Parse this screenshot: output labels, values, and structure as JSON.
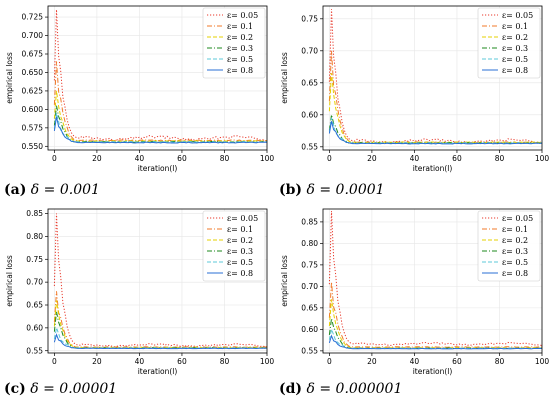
{
  "chart_data": [
    {
      "type": "line",
      "caption_letter": "(a)",
      "caption_text": "δ = 0.001",
      "xlabel": "iteration(l)",
      "ylabel": "empirical loss",
      "xlim": [
        -3,
        100
      ],
      "ylim": [
        0.545,
        0.74
      ],
      "xticks": [
        0,
        20,
        40,
        60,
        80,
        100
      ],
      "yticks": [
        0.55,
        0.575,
        0.6,
        0.625,
        0.65,
        0.675,
        0.7,
        0.725
      ],
      "ytick_labels": [
        "0.550",
        "0.575",
        "0.600",
        "0.625",
        "0.650",
        "0.675",
        "0.700",
        "0.725"
      ],
      "grid": true,
      "legend_position": "top-right",
      "series": [
        {
          "name": "ε= 0.05",
          "color": "#e8392b",
          "dash": "1.2,1.8",
          "peak": 0.735,
          "final": 0.561
        },
        {
          "name": "ε= 0.1",
          "color": "#f07a2a",
          "dash": "5,2,1,2",
          "peak": 0.665,
          "final": 0.558
        },
        {
          "name": "ε= 0.2",
          "color": "#e6d000",
          "dash": "4,2",
          "peak": 0.625,
          "final": 0.557
        },
        {
          "name": "ε= 0.3",
          "color": "#1e8a1e",
          "dash": "5,2,1,2",
          "peak": 0.605,
          "final": 0.556
        },
        {
          "name": "ε= 0.5",
          "color": "#5cc8d8",
          "dash": "4,2",
          "peak": 0.595,
          "final": 0.556
        },
        {
          "name": "ε= 0.8",
          "color": "#2a6fd6",
          "dash": "",
          "peak": 0.59,
          "final": 0.555
        }
      ]
    },
    {
      "type": "line",
      "caption_letter": "(b)",
      "caption_text": "δ = 0.0001",
      "xlabel": "iteration(l)",
      "ylabel": "empirical loss",
      "xlim": [
        -3,
        100
      ],
      "ylim": [
        0.545,
        0.77
      ],
      "xticks": [
        0,
        20,
        40,
        60,
        80,
        100
      ],
      "yticks": [
        0.55,
        0.6,
        0.65,
        0.7,
        0.75
      ],
      "ytick_labels": [
        "0.55",
        "0.60",
        "0.65",
        "0.70",
        "0.75"
      ],
      "grid": true,
      "legend_position": "top-right",
      "series": [
        {
          "name": "ε= 0.05",
          "color": "#e8392b",
          "dash": "1.2,1.8",
          "peak": 0.765,
          "final": 0.559
        },
        {
          "name": "ε= 0.1",
          "color": "#f07a2a",
          "dash": "5,2,1,2",
          "peak": 0.7,
          "final": 0.557
        },
        {
          "name": "ε= 0.2",
          "color": "#e6d000",
          "dash": "4,2",
          "peak": 0.665,
          "final": 0.557
        },
        {
          "name": "ε= 0.3",
          "color": "#1e8a1e",
          "dash": "5,2,1,2",
          "peak": 0.6,
          "final": 0.556
        },
        {
          "name": "ε= 0.5",
          "color": "#5cc8d8",
          "dash": "4,2",
          "peak": 0.595,
          "final": 0.556
        },
        {
          "name": "ε= 0.8",
          "color": "#2a6fd6",
          "dash": "",
          "peak": 0.59,
          "final": 0.555
        }
      ]
    },
    {
      "type": "line",
      "caption_letter": "(c)",
      "caption_text": "δ = 0.00001",
      "xlabel": "iteration(l)",
      "ylabel": "empirical loss",
      "xlim": [
        -3,
        100
      ],
      "ylim": [
        0.545,
        0.86
      ],
      "xticks": [
        0,
        20,
        40,
        60,
        80,
        100
      ],
      "yticks": [
        0.55,
        0.6,
        0.65,
        0.7,
        0.75,
        0.8,
        0.85
      ],
      "ytick_labels": [
        "0.55",
        "0.60",
        "0.65",
        "0.70",
        "0.75",
        "0.80",
        "0.85"
      ],
      "grid": true,
      "legend_position": "top-right",
      "series": [
        {
          "name": "ε= 0.05",
          "color": "#e8392b",
          "dash": "1.2,1.8",
          "peak": 0.85,
          "final": 0.562
        },
        {
          "name": "ε= 0.1",
          "color": "#f07a2a",
          "dash": "5,2,1,2",
          "peak": 0.68,
          "final": 0.558
        },
        {
          "name": "ε= 0.2",
          "color": "#e6d000",
          "dash": "4,2",
          "peak": 0.66,
          "final": 0.557
        },
        {
          "name": "ε= 0.3",
          "color": "#1e8a1e",
          "dash": "5,2,1,2",
          "peak": 0.635,
          "final": 0.556
        },
        {
          "name": "ε= 0.5",
          "color": "#5cc8d8",
          "dash": "4,2",
          "peak": 0.6,
          "final": 0.556
        },
        {
          "name": "ε= 0.8",
          "color": "#2a6fd6",
          "dash": "",
          "peak": 0.585,
          "final": 0.555
        }
      ]
    },
    {
      "type": "line",
      "caption_letter": "(d)",
      "caption_text": "δ = 0.000001",
      "xlabel": "iteration(l)",
      "ylabel": "empirical loss",
      "xlim": [
        -3,
        100
      ],
      "ylim": [
        0.545,
        0.88
      ],
      "xticks": [
        0,
        20,
        40,
        60,
        80,
        100
      ],
      "yticks": [
        0.55,
        0.6,
        0.65,
        0.7,
        0.75,
        0.8,
        0.85
      ],
      "ytick_labels": [
        "0.55",
        "0.60",
        "0.65",
        "0.70",
        "0.75",
        "0.80",
        "0.85"
      ],
      "grid": true,
      "legend_position": "top-right",
      "series": [
        {
          "name": "ε= 0.05",
          "color": "#e8392b",
          "dash": "1.2,1.8",
          "peak": 0.875,
          "final": 0.566
        },
        {
          "name": "ε= 0.1",
          "color": "#f07a2a",
          "dash": "5,2,1,2",
          "peak": 0.71,
          "final": 0.559
        },
        {
          "name": "ε= 0.2",
          "color": "#e6d000",
          "dash": "4,2",
          "peak": 0.67,
          "final": 0.557
        },
        {
          "name": "ε= 0.3",
          "color": "#1e8a1e",
          "dash": "5,2,1,2",
          "peak": 0.625,
          "final": 0.556
        },
        {
          "name": "ε= 0.5",
          "color": "#5cc8d8",
          "dash": "4,2",
          "peak": 0.6,
          "final": 0.556
        },
        {
          "name": "ε= 0.8",
          "color": "#2a6fd6",
          "dash": "",
          "peak": 0.585,
          "final": 0.555
        }
      ]
    }
  ]
}
